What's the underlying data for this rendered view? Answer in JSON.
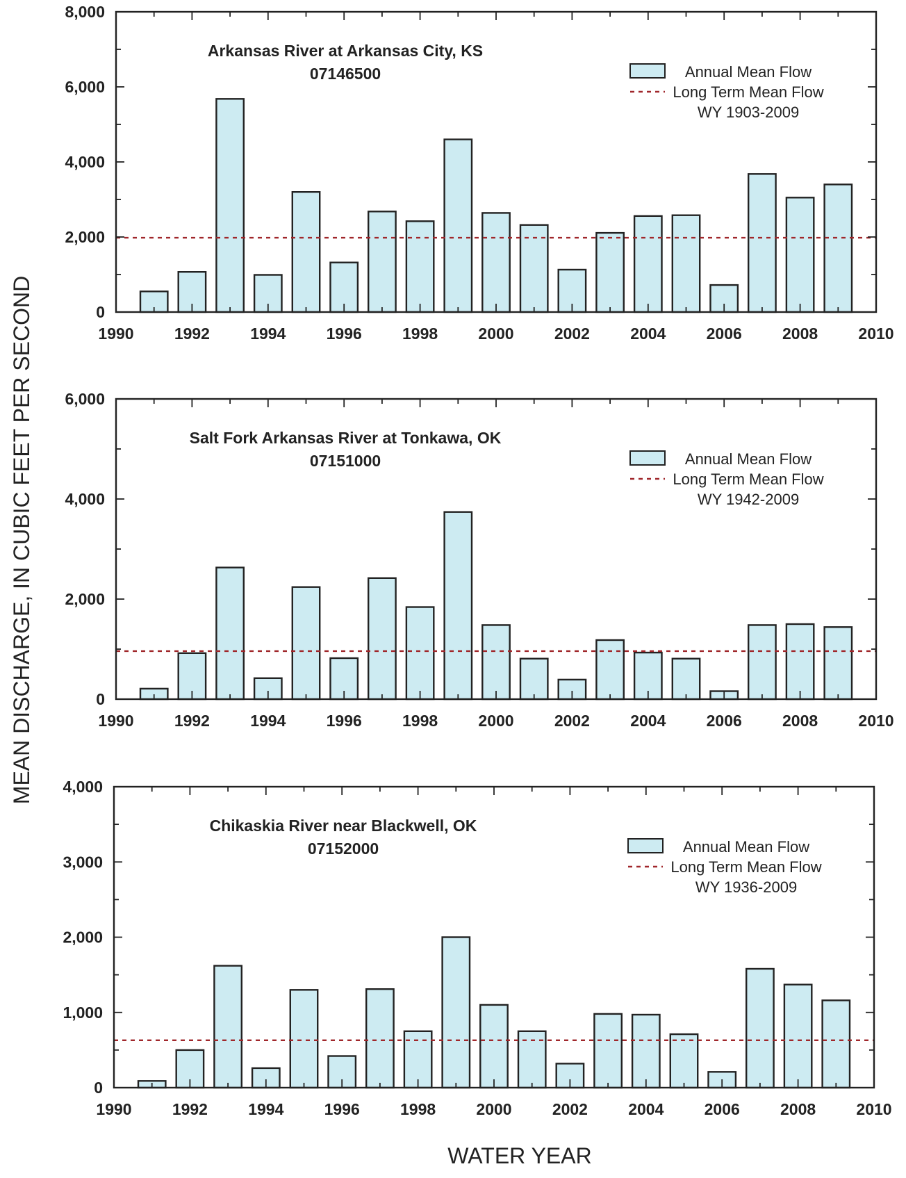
{
  "figure": {
    "ylabel": "MEAN DISCHARGE, IN CUBIC FEET PER SECOND",
    "xlabel": "WATER YEAR"
  },
  "colors": {
    "bar_fill": "#cdebf2",
    "bar_stroke": "#222222",
    "mean_line": "#a0272b",
    "frame": "#222222"
  },
  "chart_data": [
    {
      "type": "bar",
      "title": "Arkansas River at Arkansas City, KS",
      "subtitle": "07146500",
      "xlim": [
        1990,
        2010
      ],
      "ylim": [
        0,
        8000
      ],
      "xticks": [
        1990,
        1992,
        1994,
        1996,
        1998,
        2000,
        2002,
        2004,
        2006,
        2008,
        2010
      ],
      "xtick_labels": [
        "1990",
        "1992",
        "1994",
        "1996",
        "1998",
        "2000",
        "2002",
        "2004",
        "2006",
        "2008",
        "2010"
      ],
      "yticks": [
        0,
        2000,
        4000,
        6000,
        8000
      ],
      "ytick_labels": [
        "0",
        "2,000",
        "4,000",
        "6,000",
        "8,000"
      ],
      "categories": [
        1991,
        1992,
        1993,
        1994,
        1995,
        1996,
        1997,
        1998,
        1999,
        2000,
        2001,
        2002,
        2003,
        2004,
        2005,
        2006,
        2007,
        2008,
        2009
      ],
      "values": [
        550,
        1070,
        5680,
        990,
        3200,
        1320,
        2680,
        2420,
        4600,
        2640,
        2320,
        1130,
        2110,
        2560,
        2580,
        720,
        3680,
        3050,
        3400
      ],
      "long_term_mean": 1980,
      "legend": {
        "bar": "Annual Mean Flow",
        "line": "Long Term Mean Flow",
        "period": "WY 1903-2009"
      },
      "legend_placement": "top-right",
      "grid": false
    },
    {
      "type": "bar",
      "title": "Salt Fork Arkansas River at Tonkawa, OK",
      "subtitle": "07151000",
      "xlim": [
        1990,
        2010
      ],
      "ylim": [
        0,
        6000
      ],
      "xticks": [
        1990,
        1992,
        1994,
        1996,
        1998,
        2000,
        2002,
        2004,
        2006,
        2008,
        2010
      ],
      "xtick_labels": [
        "1990",
        "1992",
        "1994",
        "1996",
        "1998",
        "2000",
        "2002",
        "2004",
        "2006",
        "2008",
        "2010"
      ],
      "yticks": [
        0,
        2000,
        4000,
        6000
      ],
      "ytick_labels": [
        "0",
        "2,000",
        "4,000",
        "6,000"
      ],
      "categories": [
        1991,
        1992,
        1993,
        1994,
        1995,
        1996,
        1997,
        1998,
        1999,
        2000,
        2001,
        2002,
        2003,
        2004,
        2005,
        2006,
        2007,
        2008,
        2009
      ],
      "values": [
        210,
        920,
        2630,
        420,
        2240,
        820,
        2420,
        1840,
        3740,
        1480,
        810,
        390,
        1180,
        930,
        810,
        160,
        1480,
        1500,
        1440
      ],
      "long_term_mean": 960,
      "legend": {
        "bar": "Annual Mean Flow",
        "line": "Long Term Mean Flow",
        "period": "WY 1942-2009"
      },
      "legend_placement": "top-right",
      "grid": false
    },
    {
      "type": "bar",
      "title": "Chikaskia River near Blackwell, OK",
      "subtitle": "07152000",
      "xlim": [
        1990,
        2010
      ],
      "ylim": [
        0,
        4000
      ],
      "xticks": [
        1990,
        1992,
        1994,
        1996,
        1998,
        2000,
        2002,
        2004,
        2006,
        2008,
        2010
      ],
      "xtick_labels": [
        "1990",
        "1992",
        "1994",
        "1996",
        "1998",
        "2000",
        "2002",
        "2004",
        "2006",
        "2008",
        "2010"
      ],
      "yticks": [
        0,
        1000,
        2000,
        3000,
        4000
      ],
      "ytick_labels": [
        "0",
        "1,000",
        "2,000",
        "3,000",
        "4,000"
      ],
      "categories": [
        1991,
        1992,
        1993,
        1994,
        1995,
        1996,
        1997,
        1998,
        1999,
        2000,
        2001,
        2002,
        2003,
        2004,
        2005,
        2006,
        2007,
        2008,
        2009
      ],
      "values": [
        90,
        500,
        1620,
        260,
        1300,
        420,
        1310,
        750,
        2000,
        1100,
        750,
        320,
        980,
        970,
        710,
        210,
        1580,
        1370,
        1160
      ],
      "long_term_mean": 630,
      "legend": {
        "bar": "Annual Mean Flow",
        "line": "Long Term Mean Flow",
        "period": "WY 1936-2009"
      },
      "legend_placement": "top-right",
      "grid": false
    }
  ]
}
